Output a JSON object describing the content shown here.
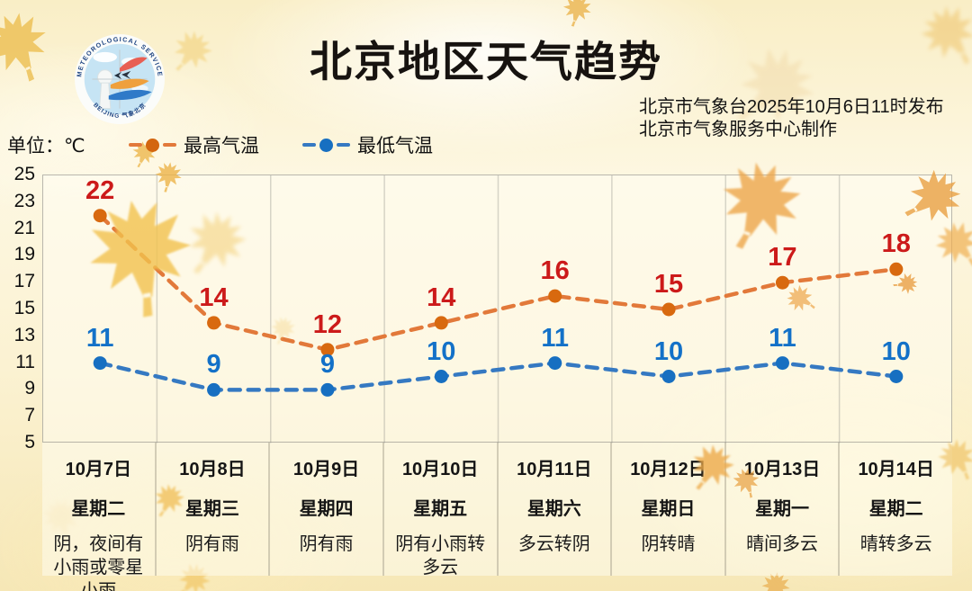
{
  "header": {
    "title": "北京地区天气趋势",
    "publisher_line1": "北京市气象台2025年10月6日11时发布",
    "publisher_line2": "北京市气象服务中心制作",
    "logo": {
      "top_text": "METEOROLOGICAL SERVICE",
      "bottom_text": "BEIJING 气象北京"
    }
  },
  "unit_label": "单位：℃",
  "legend": [
    {
      "label": "最高气温",
      "line_color": "#e2793a",
      "dot_color": "#d3660f"
    },
    {
      "label": "最低气温",
      "line_color": "#3579c2",
      "dot_color": "#176fc1"
    }
  ],
  "chart_data": {
    "type": "line",
    "title": "北京地区天气趋势",
    "x": [
      "10月7日",
      "10月8日",
      "10月9日",
      "10月10日",
      "10月11日",
      "10月12日",
      "10月13日",
      "10月14日"
    ],
    "weekdays": [
      "星期二",
      "星期三",
      "星期四",
      "星期五",
      "星期六",
      "星期日",
      "星期一",
      "星期二"
    ],
    "weather": [
      "阴，夜间有小雨或零星小雨",
      "阴有雨",
      "阴有雨",
      "阴有小雨转多云",
      "多云转阴",
      "阴转晴",
      "晴间多云",
      "晴转多云"
    ],
    "series": [
      {
        "name": "最高气温",
        "values": [
          22,
          14,
          12,
          14,
          16,
          15,
          17,
          18
        ],
        "line_color": "#e2793a",
        "marker_color": "#d8690f",
        "label_color": "#cc1a1a"
      },
      {
        "name": "最低气温",
        "values": [
          11,
          9,
          9,
          10,
          11,
          10,
          11,
          10
        ],
        "line_color": "#3579c2",
        "marker_color": "#176fc1",
        "label_color": "#1371c8"
      }
    ],
    "ylabel": "单位：℃",
    "ylim": [
      5,
      25
    ],
    "yticks": [
      25,
      23,
      21,
      19,
      17,
      15,
      13,
      11,
      9,
      7,
      5
    ],
    "grid": "vertical-only",
    "legend_position": "top-left"
  }
}
